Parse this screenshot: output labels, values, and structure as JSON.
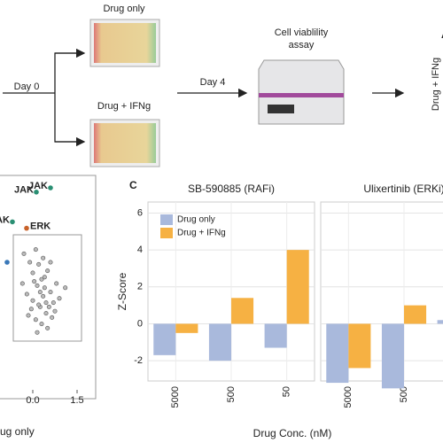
{
  "schematic": {
    "day0": "Day 0",
    "plate1": "Drug only",
    "plate2": "Drug + IFNg",
    "day4": "Day 4",
    "assay": [
      "Cell viablility",
      "assay"
    ],
    "right_label": "Drug + IFNg",
    "panel_a": "A"
  },
  "panel_c": "C",
  "chart_data": [
    {
      "type": "scatter",
      "xlabel": "ug only",
      "xlim": [
        -1.11,
        2.13
      ],
      "ylim": [
        0,
        10
      ],
      "xticks": [
        {
          "value": 0,
          "label": "0.0"
        },
        1.5
      ],
      "color": "#888888",
      "x": [
        -0.3,
        -0.1,
        0.0,
        0.1,
        0.2,
        0.3,
        0.4,
        0.5,
        -0.2,
        0.0,
        0.15,
        0.35,
        0.6,
        0.8,
        -0.05,
        0.25,
        0.45,
        0.1,
        0.3,
        0.55,
        0.7,
        0.05,
        0.2,
        0.4,
        0.65,
        -0.15,
        0.5,
        0.9,
        0.35,
        0.15,
        -0.35,
        0.75,
        0.6,
        0.25,
        1.1,
        0.45
      ],
      "y": [
        6.4,
        6.0,
        5.5,
        6.6,
        5.9,
        5.2,
        4.8,
        5.6,
        4.5,
        4.2,
        4.9,
        4.4,
        4.6,
        5.0,
        3.8,
        3.9,
        3.6,
        3.3,
        3.1,
        3.9,
        4.1,
        5.1,
        4.0,
        5.3,
        3.4,
        3.5,
        2.9,
        4.3,
        6.2,
        2.7,
        5.0,
        3.7,
        6.0,
        4.6,
        4.8,
        4.1
      ],
      "annotations": [
        {
          "text": "JAK",
          "x": 0.6,
          "y": 9.5,
          "color": "#2a8f73"
        },
        {
          "text": "JAK",
          "x": 0.12,
          "y": 9.3,
          "color": "#2a8f73"
        },
        {
          "text": "JAK",
          "x": -0.69,
          "y": 7.9,
          "color": "#2a8f73"
        },
        {
          "text": "ERK",
          "x": -0.21,
          "y": 7.6,
          "color": "#c8622a"
        },
        {
          "text": "",
          "x": -0.87,
          "y": 6.0,
          "color": "#3a78b8"
        }
      ]
    },
    {
      "type": "bar",
      "title": "SB-590885 (RAFi)",
      "categories": [
        "5000",
        "500",
        "50"
      ],
      "series": [
        {
          "name": "Drug only",
          "color": "#a9b9dc",
          "values": [
            -1.7,
            -2.0,
            -1.3
          ]
        },
        {
          "name": "Drug + IFNg",
          "color": "#f6b143",
          "values": [
            -0.5,
            1.4,
            4.0
          ]
        }
      ],
      "ylim": [
        -3.1,
        6.6
      ],
      "yticks": [
        -2,
        0,
        2,
        4,
        6
      ],
      "ylabel": "Z-Score",
      "xlabel": "Drug Conc. (nM)",
      "grid": true,
      "legend": "top-left"
    },
    {
      "type": "bar",
      "title": "Ulixertinib (ERKi)",
      "categories": [
        "5000",
        "500",
        null
      ],
      "series": [
        {
          "name": "Drug only",
          "color": "#a9b9dc",
          "values": [
            -3.2,
            -3.5,
            0.2
          ]
        },
        {
          "name": "Drug + IFNg",
          "color": "#f6b143",
          "values": [
            -2.4,
            1.0,
            null
          ]
        }
      ],
      "ylim": [
        -3.1,
        6.6
      ],
      "yticks": [
        -2,
        0,
        2,
        4,
        6
      ],
      "grid": true
    }
  ]
}
